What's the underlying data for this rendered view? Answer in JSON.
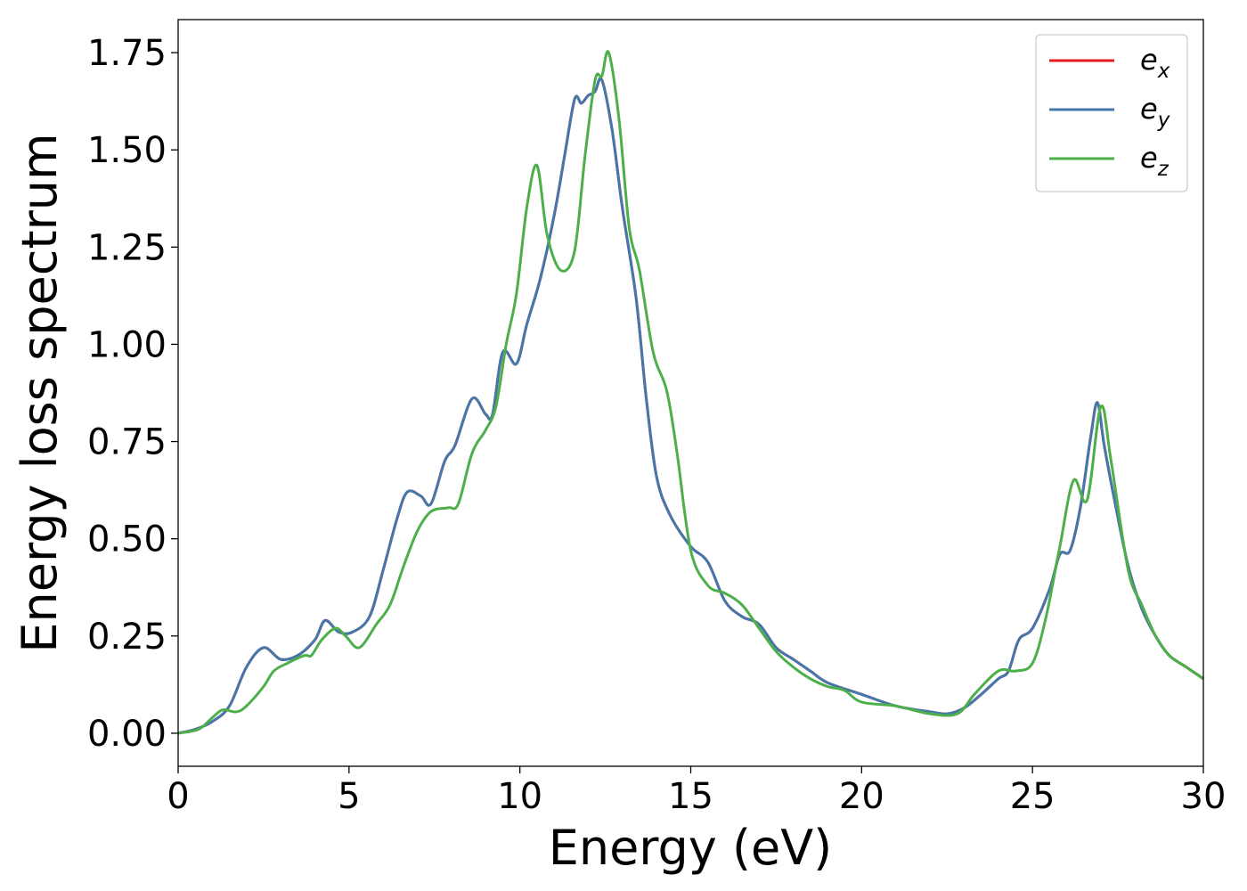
{
  "chart_data": {
    "type": "line",
    "xlabel": "Energy (eV)",
    "ylabel": "Energy loss spectrum",
    "xlim": [
      0,
      30
    ],
    "ylim": [
      -0.085,
      1.835
    ],
    "xticks": [
      "0",
      "5",
      "10",
      "15",
      "20",
      "25",
      "30"
    ],
    "yticks": [
      "0.00",
      "0.25",
      "0.50",
      "0.75",
      "1.00",
      "1.25",
      "1.50",
      "1.75"
    ],
    "grid": false,
    "legend_position": "top-right",
    "series": [
      {
        "name": "e_x",
        "legend": {
          "base": "e",
          "sub": "x"
        },
        "color": "#e41a1c",
        "points": [
          [
            0,
            0
          ],
          [
            0.5,
            0.01
          ],
          [
            1,
            0.03
          ],
          [
            1.5,
            0.07
          ],
          [
            2,
            0.17
          ],
          [
            2.5,
            0.22
          ],
          [
            3,
            0.19
          ],
          [
            3.5,
            0.2
          ],
          [
            4,
            0.24
          ],
          [
            4.3,
            0.29
          ],
          [
            4.7,
            0.26
          ],
          [
            5.1,
            0.26
          ],
          [
            5.6,
            0.3
          ],
          [
            6,
            0.42
          ],
          [
            6.4,
            0.55
          ],
          [
            6.7,
            0.62
          ],
          [
            7.1,
            0.61
          ],
          [
            7.4,
            0.59
          ],
          [
            7.8,
            0.7
          ],
          [
            8.1,
            0.74
          ],
          [
            8.6,
            0.86
          ],
          [
            9,
            0.82
          ],
          [
            9.2,
            0.82
          ],
          [
            9.5,
            0.98
          ],
          [
            9.9,
            0.95
          ],
          [
            10.2,
            1.05
          ],
          [
            10.6,
            1.17
          ],
          [
            11,
            1.33
          ],
          [
            11.3,
            1.48
          ],
          [
            11.6,
            1.63
          ],
          [
            11.8,
            1.62
          ],
          [
            12,
            1.64
          ],
          [
            12.2,
            1.65
          ],
          [
            12.4,
            1.68
          ],
          [
            12.7,
            1.55
          ],
          [
            13,
            1.35
          ],
          [
            13.4,
            1.12
          ],
          [
            13.7,
            0.86
          ],
          [
            14,
            0.66
          ],
          [
            14.4,
            0.56
          ],
          [
            15,
            0.48
          ],
          [
            15.5,
            0.44
          ],
          [
            16,
            0.34
          ],
          [
            16.5,
            0.3
          ],
          [
            17,
            0.28
          ],
          [
            17.5,
            0.22
          ],
          [
            18,
            0.19
          ],
          [
            18.5,
            0.16
          ],
          [
            19,
            0.13
          ],
          [
            20,
            0.1
          ],
          [
            21,
            0.07
          ],
          [
            22,
            0.055
          ],
          [
            22.5,
            0.05
          ],
          [
            23,
            0.065
          ],
          [
            23.5,
            0.1
          ],
          [
            24,
            0.14
          ],
          [
            24.3,
            0.16
          ],
          [
            24.6,
            0.24
          ],
          [
            25,
            0.27
          ],
          [
            25.5,
            0.37
          ],
          [
            25.8,
            0.46
          ],
          [
            26.1,
            0.47
          ],
          [
            26.4,
            0.58
          ],
          [
            26.7,
            0.76
          ],
          [
            26.9,
            0.85
          ],
          [
            27.1,
            0.74
          ],
          [
            27.4,
            0.6
          ],
          [
            27.8,
            0.43
          ],
          [
            28.2,
            0.32
          ],
          [
            28.6,
            0.25
          ],
          [
            29,
            0.2
          ],
          [
            29.5,
            0.17
          ],
          [
            30,
            0.14
          ]
        ]
      },
      {
        "name": "e_y",
        "legend": {
          "base": "e",
          "sub": "y"
        },
        "color": "#4477aa",
        "points": [
          [
            0,
            0
          ],
          [
            0.5,
            0.01
          ],
          [
            1,
            0.03
          ],
          [
            1.5,
            0.07
          ],
          [
            2,
            0.17
          ],
          [
            2.5,
            0.22
          ],
          [
            3,
            0.19
          ],
          [
            3.5,
            0.2
          ],
          [
            4,
            0.24
          ],
          [
            4.3,
            0.29
          ],
          [
            4.7,
            0.26
          ],
          [
            5.1,
            0.26
          ],
          [
            5.6,
            0.3
          ],
          [
            6,
            0.42
          ],
          [
            6.4,
            0.55
          ],
          [
            6.7,
            0.62
          ],
          [
            7.1,
            0.61
          ],
          [
            7.4,
            0.59
          ],
          [
            7.8,
            0.7
          ],
          [
            8.1,
            0.74
          ],
          [
            8.6,
            0.86
          ],
          [
            9,
            0.82
          ],
          [
            9.2,
            0.82
          ],
          [
            9.5,
            0.98
          ],
          [
            9.9,
            0.95
          ],
          [
            10.2,
            1.05
          ],
          [
            10.6,
            1.17
          ],
          [
            11,
            1.33
          ],
          [
            11.3,
            1.48
          ],
          [
            11.6,
            1.63
          ],
          [
            11.8,
            1.62
          ],
          [
            12,
            1.64
          ],
          [
            12.2,
            1.65
          ],
          [
            12.4,
            1.68
          ],
          [
            12.7,
            1.55
          ],
          [
            13,
            1.35
          ],
          [
            13.4,
            1.12
          ],
          [
            13.7,
            0.86
          ],
          [
            14,
            0.66
          ],
          [
            14.4,
            0.56
          ],
          [
            15,
            0.48
          ],
          [
            15.5,
            0.44
          ],
          [
            16,
            0.34
          ],
          [
            16.5,
            0.3
          ],
          [
            17,
            0.28
          ],
          [
            17.5,
            0.22
          ],
          [
            18,
            0.19
          ],
          [
            18.5,
            0.16
          ],
          [
            19,
            0.13
          ],
          [
            20,
            0.1
          ],
          [
            21,
            0.07
          ],
          [
            22,
            0.055
          ],
          [
            22.5,
            0.05
          ],
          [
            23,
            0.065
          ],
          [
            23.5,
            0.1
          ],
          [
            24,
            0.14
          ],
          [
            24.3,
            0.16
          ],
          [
            24.6,
            0.24
          ],
          [
            25,
            0.27
          ],
          [
            25.5,
            0.37
          ],
          [
            25.8,
            0.46
          ],
          [
            26.1,
            0.47
          ],
          [
            26.4,
            0.58
          ],
          [
            26.7,
            0.76
          ],
          [
            26.9,
            0.85
          ],
          [
            27.1,
            0.74
          ],
          [
            27.4,
            0.6
          ],
          [
            27.8,
            0.43
          ],
          [
            28.2,
            0.32
          ],
          [
            28.6,
            0.25
          ],
          [
            29,
            0.2
          ],
          [
            29.5,
            0.17
          ],
          [
            30,
            0.14
          ]
        ]
      },
      {
        "name": "e_z",
        "legend": {
          "base": "e",
          "sub": "z"
        },
        "color": "#4daf4a",
        "points": [
          [
            0,
            0
          ],
          [
            0.6,
            0.01
          ],
          [
            1,
            0.04
          ],
          [
            1.3,
            0.06
          ],
          [
            1.7,
            0.055
          ],
          [
            2,
            0.07
          ],
          [
            2.5,
            0.12
          ],
          [
            2.8,
            0.16
          ],
          [
            3.2,
            0.18
          ],
          [
            3.7,
            0.2
          ],
          [
            3.9,
            0.2
          ],
          [
            4.2,
            0.24
          ],
          [
            4.6,
            0.27
          ],
          [
            4.9,
            0.25
          ],
          [
            5.3,
            0.22
          ],
          [
            5.8,
            0.28
          ],
          [
            6.2,
            0.33
          ],
          [
            6.6,
            0.43
          ],
          [
            7,
            0.52
          ],
          [
            7.4,
            0.57
          ],
          [
            7.9,
            0.58
          ],
          [
            8.2,
            0.59
          ],
          [
            8.6,
            0.72
          ],
          [
            9,
            0.78
          ],
          [
            9.3,
            0.84
          ],
          [
            9.6,
            1.0
          ],
          [
            9.9,
            1.13
          ],
          [
            10.2,
            1.35
          ],
          [
            10.5,
            1.46
          ],
          [
            10.8,
            1.28
          ],
          [
            11.2,
            1.19
          ],
          [
            11.6,
            1.24
          ],
          [
            11.9,
            1.48
          ],
          [
            12.2,
            1.68
          ],
          [
            12.4,
            1.69
          ],
          [
            12.6,
            1.75
          ],
          [
            12.9,
            1.58
          ],
          [
            13.2,
            1.3
          ],
          [
            13.5,
            1.19
          ],
          [
            13.9,
            0.98
          ],
          [
            14.3,
            0.88
          ],
          [
            14.6,
            0.72
          ],
          [
            15,
            0.47
          ],
          [
            15.5,
            0.38
          ],
          [
            16,
            0.36
          ],
          [
            16.5,
            0.33
          ],
          [
            17,
            0.27
          ],
          [
            17.5,
            0.21
          ],
          [
            18,
            0.17
          ],
          [
            18.5,
            0.14
          ],
          [
            19,
            0.12
          ],
          [
            19.5,
            0.11
          ],
          [
            20,
            0.08
          ],
          [
            21,
            0.07
          ],
          [
            22,
            0.05
          ],
          [
            22.8,
            0.05
          ],
          [
            23.3,
            0.1
          ],
          [
            24,
            0.16
          ],
          [
            24.5,
            0.16
          ],
          [
            25,
            0.18
          ],
          [
            25.4,
            0.3
          ],
          [
            25.8,
            0.48
          ],
          [
            26.2,
            0.65
          ],
          [
            26.6,
            0.6
          ],
          [
            27,
            0.84
          ],
          [
            27.3,
            0.7
          ],
          [
            27.8,
            0.42
          ],
          [
            28.2,
            0.33
          ],
          [
            28.6,
            0.25
          ],
          [
            29,
            0.2
          ],
          [
            29.5,
            0.17
          ],
          [
            30,
            0.14
          ]
        ]
      }
    ]
  }
}
